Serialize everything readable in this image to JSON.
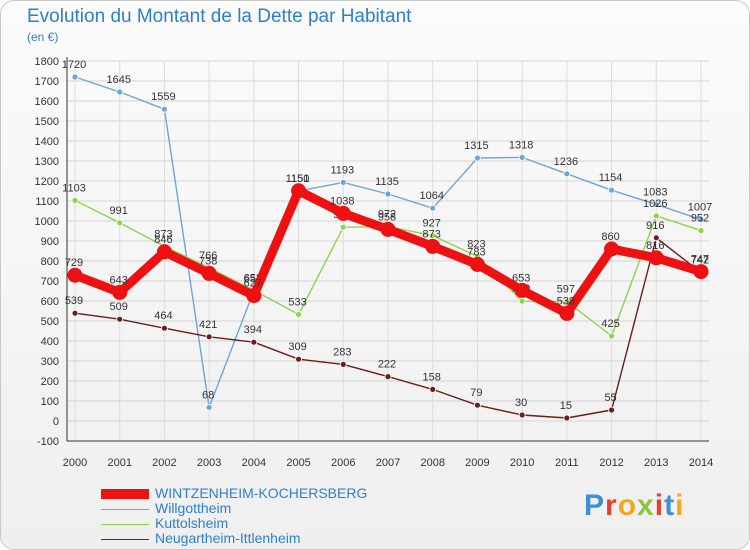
{
  "title": "Evolution du Montant de la Dette par Habitant",
  "subtitle": "(en €)",
  "logo_text": "Proxiti",
  "chart_data": {
    "type": "line",
    "title": "Evolution du Montant de la Dette par Habitant",
    "unit_label": "(en €)",
    "x": [
      "2000",
      "2001",
      "2002",
      "2003",
      "2004",
      "2005",
      "2006",
      "2007",
      "2008",
      "2009",
      "2010",
      "2011",
      "2012",
      "2013",
      "2014"
    ],
    "ylim": [
      -100,
      1800
    ],
    "yticks": [
      "-100",
      "0",
      "100",
      "200",
      "300",
      "400",
      "500",
      "600",
      "700",
      "800",
      "900",
      "1000",
      "1100",
      "1200",
      "1300",
      "1400",
      "1500",
      "1600",
      "1700",
      "1800"
    ],
    "grid": true,
    "legend_position": "bottom-left",
    "series": [
      {
        "name": "Willgottheim",
        "color": "#6ea5d8",
        "values": [
          1720,
          1645,
          1559,
          68,
          651,
          1150,
          1193,
          1135,
          1064,
          1315,
          1318,
          1236,
          1154,
          1083,
          1007
        ],
        "labels": [
          "1720",
          "1645",
          "1559",
          "68",
          "651",
          "1150",
          "1193",
          "1135",
          "1064",
          "1315",
          "1318",
          "1236",
          "1154",
          "1083",
          "1007"
        ]
      },
      {
        "name": "Kuttolsheim",
        "color": "#8ed448",
        "values": [
          1103,
          991,
          873,
          766,
          653,
          533,
          969,
          972,
          927,
          823,
          599,
          597,
          425,
          1026,
          952
        ],
        "labels": [
          "1103",
          "991",
          "873",
          "766",
          "653",
          "533",
          "969",
          "972",
          "927",
          "823",
          "599",
          "597",
          "425",
          "1026",
          "952"
        ]
      },
      {
        "name": "Neugartheim-Ittlenheim",
        "color": "#6e1c1c",
        "values": [
          539,
          509,
          464,
          421,
          394,
          309,
          283,
          222,
          158,
          79,
          30,
          15,
          55,
          916,
          742
        ],
        "labels": [
          "539",
          "509",
          "464",
          "421",
          "394",
          "309",
          "283",
          "222",
          "158",
          "79",
          "30",
          "15",
          "55",
          "916",
          "742"
        ]
      },
      {
        "name": "WINTZENHEIM-KOCHERSBERG",
        "color": "#ee1111",
        "values": [
          729,
          643,
          846,
          738,
          627,
          1151,
          1038,
          958,
          873,
          783,
          653,
          538,
          860,
          816,
          747
        ],
        "labels": [
          "729",
          "643",
          "846",
          "738",
          "627",
          "1151",
          "1038",
          "958",
          "873",
          "783",
          "653",
          "538",
          "860",
          "816",
          "747"
        ]
      }
    ]
  },
  "legend": {
    "items": [
      {
        "label": "WINTZENHEIM-KOCHERSBERG",
        "color": "#ee1111",
        "weight": "thick"
      },
      {
        "label": "Willgottheim",
        "color": "#6ea5d8",
        "weight": "thin"
      },
      {
        "label": "Kuttolsheim",
        "color": "#8ed448",
        "weight": "thin"
      },
      {
        "label": "Neugartheim-Ittlenheim",
        "color": "#6e1c1c",
        "weight": "thin"
      }
    ]
  }
}
